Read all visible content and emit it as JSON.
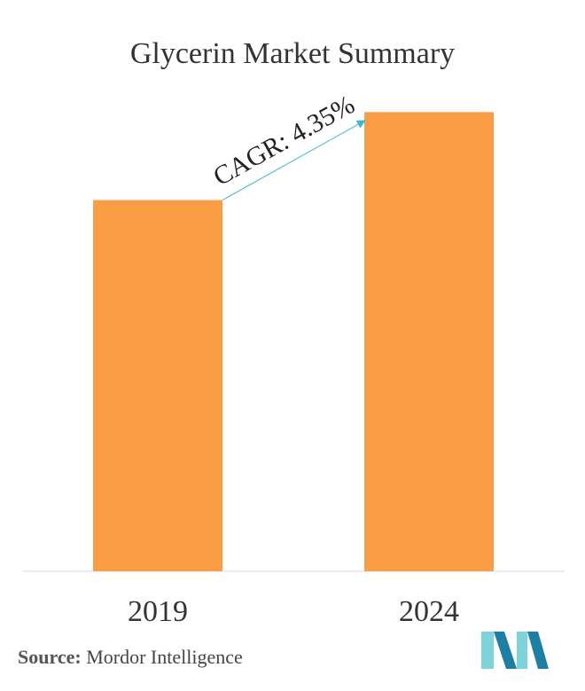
{
  "title": "Glycerin Market Summary",
  "chart_data": {
    "type": "bar",
    "categories": [
      "2019",
      "2024"
    ],
    "values": [
      1.0,
      1.237
    ],
    "ylim": [
      0,
      1.3
    ],
    "grid": false,
    "annotation": "CAGR: 4.35%",
    "colors": {
      "bar": "#F99E44",
      "arrow": "#3DBCC4",
      "axis": "#D9D9D9"
    }
  },
  "source": {
    "label": "Source:",
    "text": "Mordor Intelligence"
  },
  "logo_colors": {
    "light": "#7ED3DB",
    "dark": "#1E7FA6"
  }
}
